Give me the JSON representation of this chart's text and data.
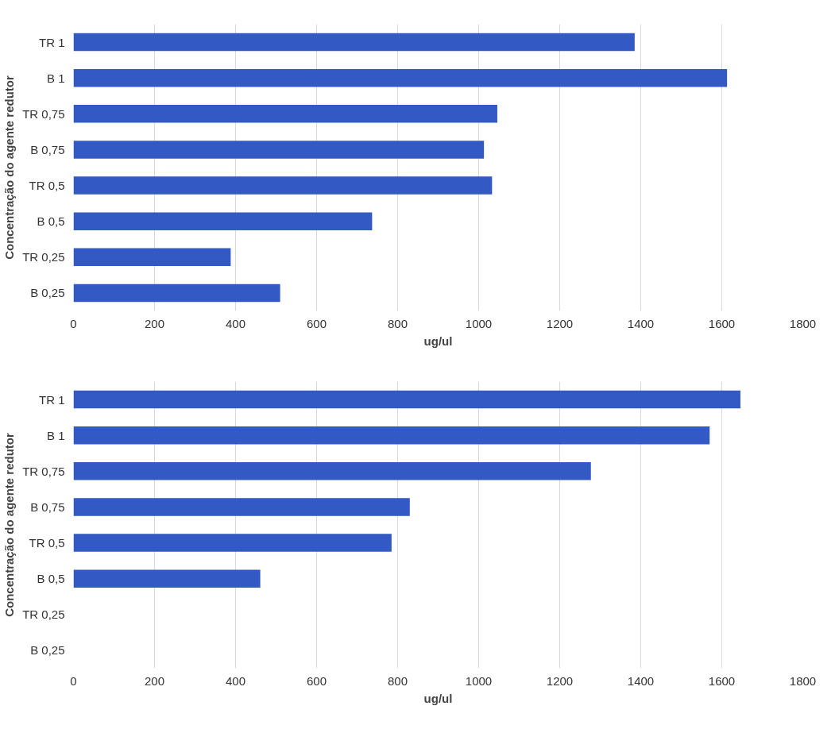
{
  "chart_data": [
    {
      "type": "bar",
      "orientation": "horizontal",
      "xlabel": "ug/ul",
      "ylabel": "Concentração do agente redutor",
      "categories": [
        "TR 1",
        "B 1",
        "TR 0,75",
        "B 0,75",
        "TR 0,5",
        "B 0,5",
        "TR 0,25",
        "B 0,25"
      ],
      "series": [
        {
          "color": "#3359c4",
          "values": [
            1385,
            1613,
            1046,
            1013,
            1033,
            737,
            388,
            510
          ]
        }
      ],
      "xlim": [
        0,
        1800
      ],
      "xticks": [
        0,
        200,
        400,
        600,
        800,
        1000,
        1200,
        1400,
        1600,
        1800
      ],
      "grid": "x"
    },
    {
      "type": "bar",
      "orientation": "horizontal",
      "xlabel": "ug/ul",
      "ylabel": "Concentração do agente redutor",
      "categories": [
        "TR 1",
        "B 1",
        "TR 0,75",
        "B 0,75",
        "TR 0,5",
        "B 0,5",
        "TR 0,25",
        "B 0,25"
      ],
      "series": [
        {
          "color": "#3359c4",
          "values": [
            1646,
            1570,
            1277,
            830,
            785,
            461,
            null,
            null
          ]
        }
      ],
      "xlim": [
        0,
        1800
      ],
      "xticks": [
        0,
        200,
        400,
        600,
        800,
        1000,
        1200,
        1400,
        1600,
        1800
      ],
      "grid": "x"
    }
  ]
}
